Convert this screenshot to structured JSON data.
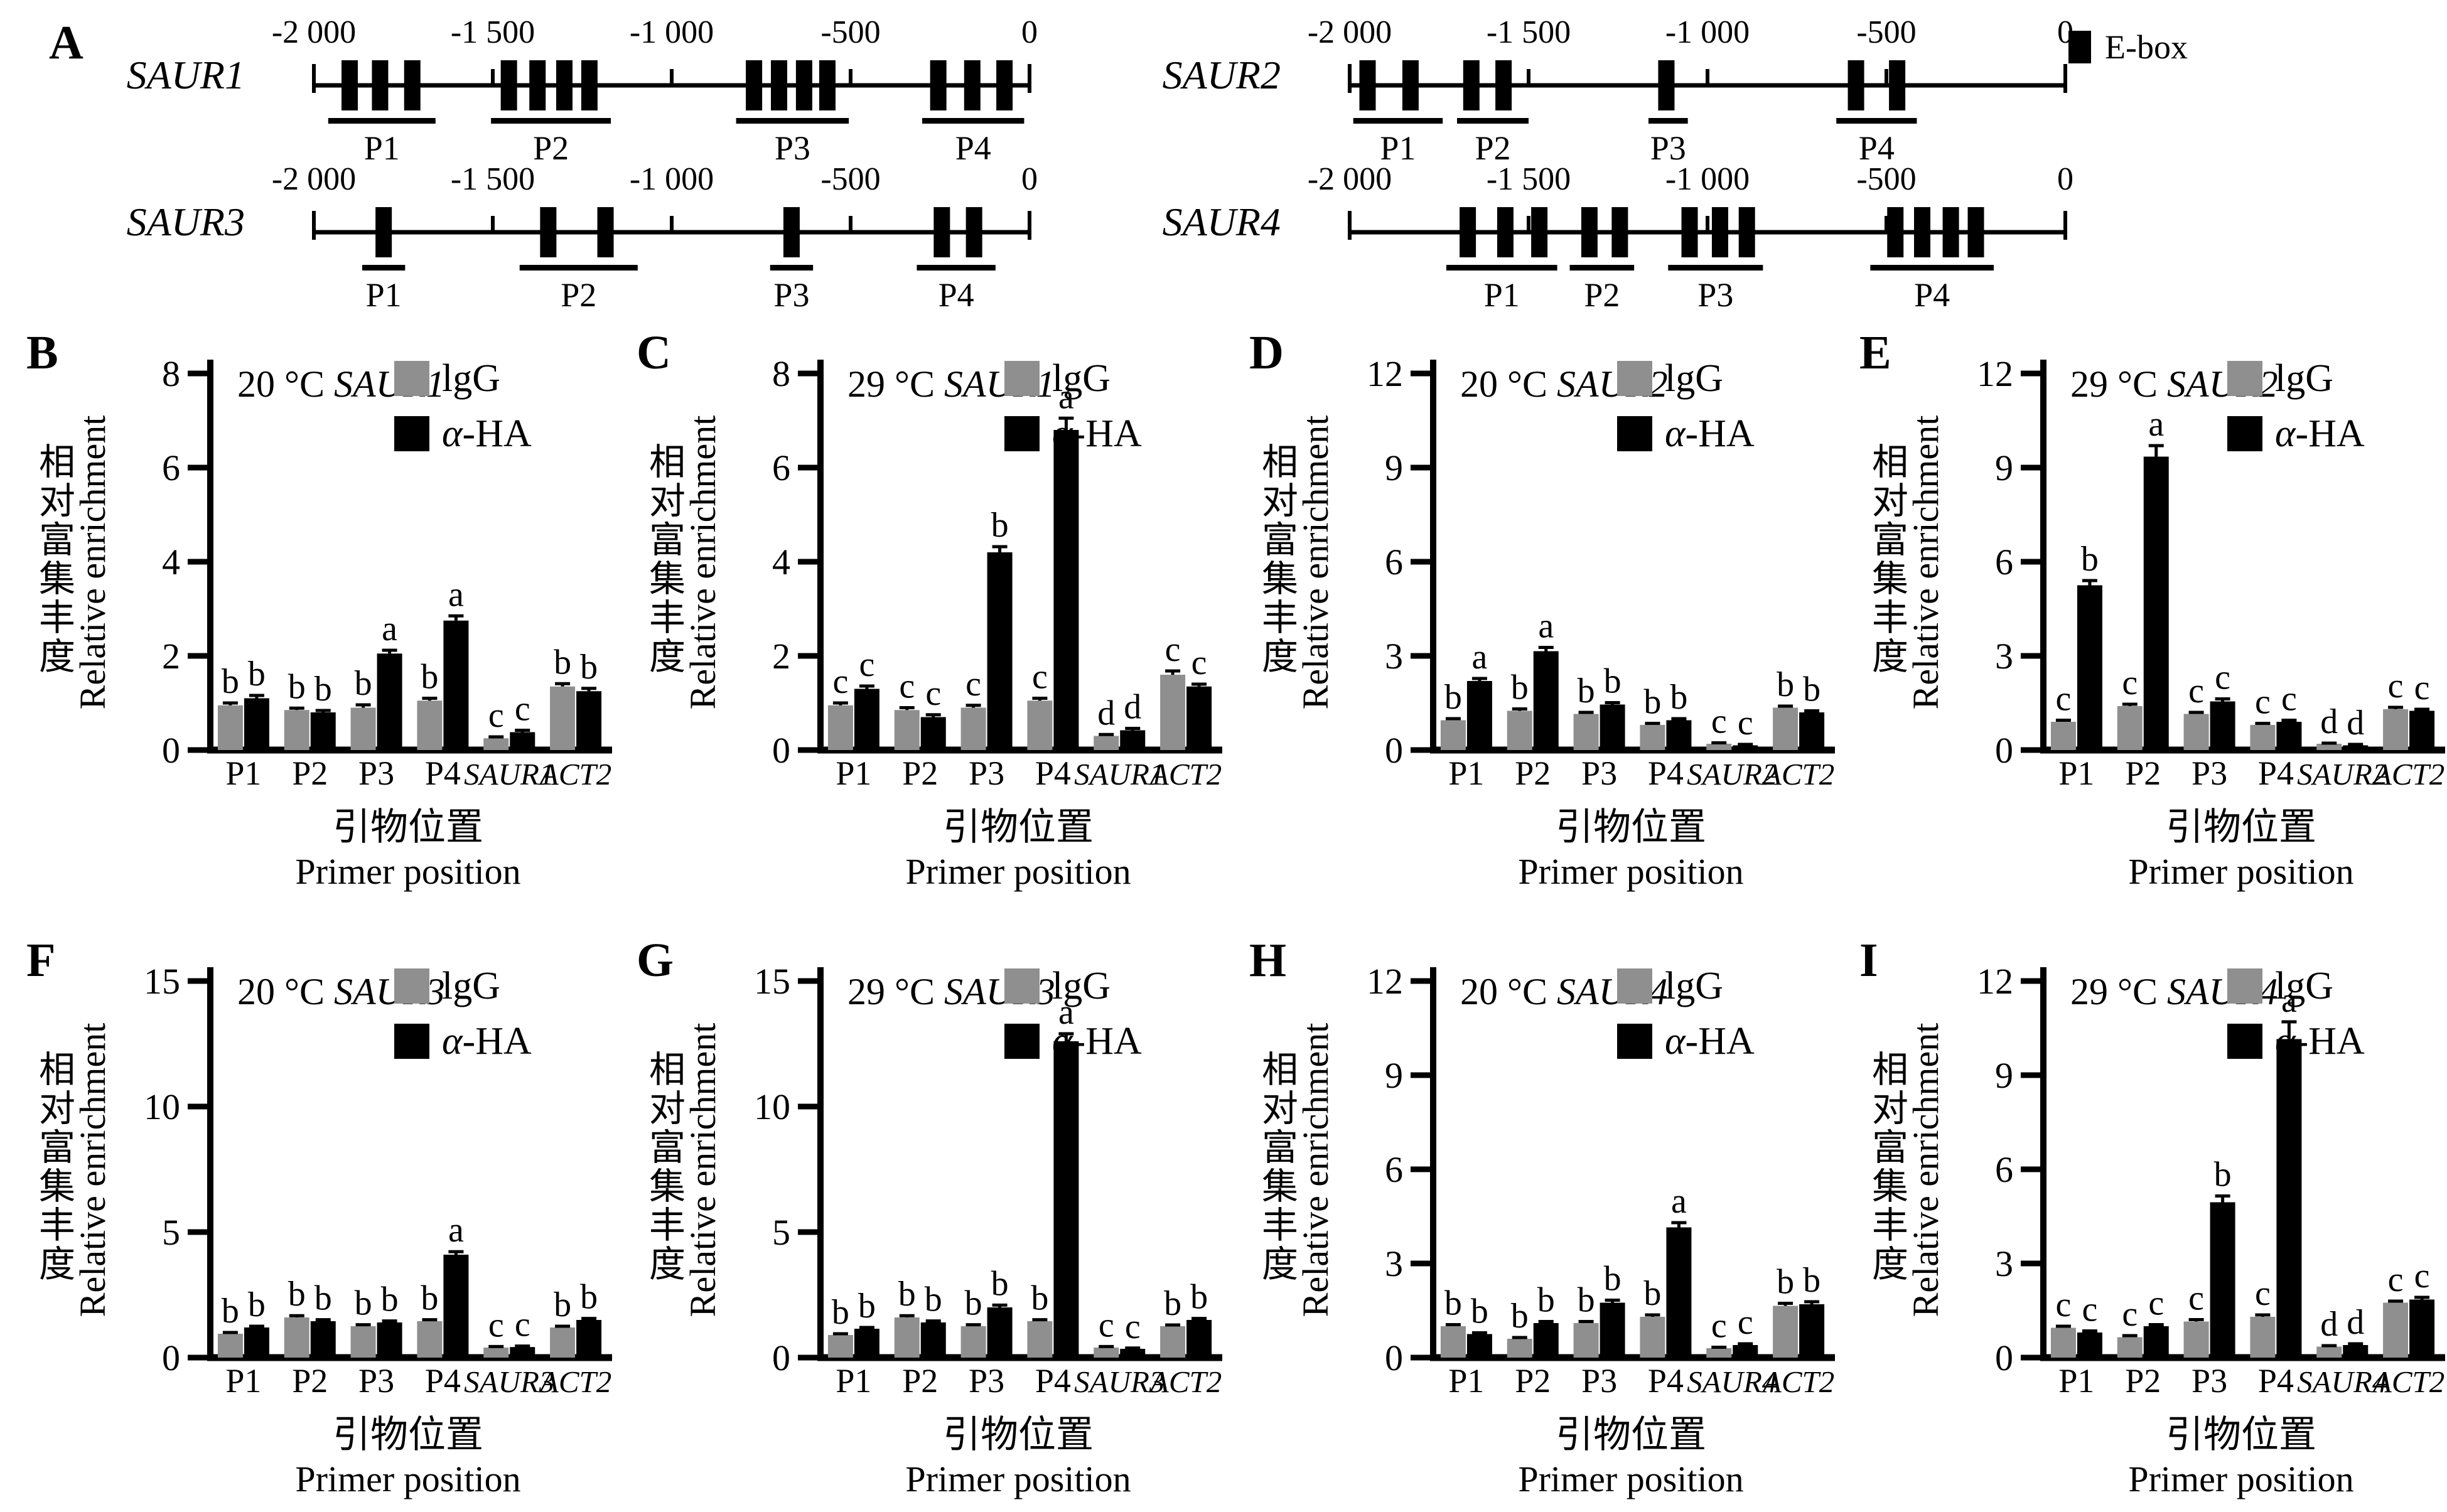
{
  "shared": {
    "ylabel_cn": "相对富集丰度",
    "ylabel_en": "Relative enrichment",
    "xlabel_cn": "引物位置",
    "xlabel_en": "Primer position",
    "legend": {
      "igg": "lgG",
      "ha_alpha": "α",
      "ha_rest": "-HA"
    },
    "colors": {
      "igg": "#8f8f8f",
      "ha": "#000000"
    }
  },
  "panel_a": {
    "label": "A",
    "legend_label": "E-box",
    "axis": {
      "min": -2000,
      "max": 0,
      "ticks": [
        {
          "label": "-2 000",
          "value": -2000
        },
        {
          "label": "-1 500",
          "value": -1500
        },
        {
          "label": "-1 000",
          "value": -1000
        },
        {
          "label": "-500",
          "value": -500
        },
        {
          "label": "0",
          "value": 0
        }
      ]
    },
    "genes": [
      {
        "name": "SAUR1",
        "eboxes": [
          -1900,
          -1815,
          -1725,
          -1455,
          -1375,
          -1300,
          -1230,
          -770,
          -700,
          -630,
          -565,
          -255,
          -160,
          -70
        ],
        "primers": [
          {
            "label": "P1",
            "from": -1960,
            "to": -1660
          },
          {
            "label": "P2",
            "from": -1505,
            "to": -1170
          },
          {
            "label": "P3",
            "from": -820,
            "to": -505
          },
          {
            "label": "P4",
            "from": -300,
            "to": -15
          }
        ]
      },
      {
        "name": "SAUR2",
        "eboxes": [
          -1950,
          -1830,
          -1660,
          -1570,
          -1115,
          -585,
          -470
        ],
        "primers": [
          {
            "label": "P1",
            "from": -1990,
            "to": -1740
          },
          {
            "label": "P2",
            "from": -1700,
            "to": -1500
          },
          {
            "label": "P3",
            "from": -1165,
            "to": -1055
          },
          {
            "label": "P4",
            "from": -640,
            "to": -415
          }
        ]
      },
      {
        "name": "SAUR3",
        "eboxes": [
          -1805,
          -1345,
          -1185,
          -665,
          -245,
          -155
        ],
        "primers": [
          {
            "label": "P1",
            "from": -1865,
            "to": -1745
          },
          {
            "label": "P2",
            "from": -1425,
            "to": -1095
          },
          {
            "label": "P3",
            "from": -725,
            "to": -605
          },
          {
            "label": "P4",
            "from": -315,
            "to": -95
          }
        ]
      },
      {
        "name": "SAUR4",
        "eboxes": [
          -1670,
          -1565,
          -1470,
          -1330,
          -1245,
          -1050,
          -965,
          -890,
          -475,
          -400,
          -320,
          -250
        ],
        "primers": [
          {
            "label": "P1",
            "from": -1730,
            "to": -1420
          },
          {
            "label": "P2",
            "from": -1385,
            "to": -1205
          },
          {
            "label": "P3",
            "from": -1110,
            "to": -845
          },
          {
            "label": "P4",
            "from": -545,
            "to": -200
          }
        ]
      }
    ]
  },
  "chart_data": [
    {
      "type": "bar",
      "panel": "B",
      "title_prefix": "20 °C",
      "title_gene": "SAUR1",
      "ylim": [
        0,
        8
      ],
      "yticks": [
        0,
        2,
        4,
        6,
        8
      ],
      "categories": [
        {
          "label": "P1",
          "gene": false
        },
        {
          "label": "P2",
          "gene": false
        },
        {
          "label": "P3",
          "gene": false
        },
        {
          "label": "P4",
          "gene": false
        },
        {
          "label": "SAUR1",
          "gene": true
        },
        {
          "label": "ACT2",
          "gene": true
        }
      ],
      "series": [
        {
          "name": "lgG",
          "values": [
            0.95,
            0.85,
            0.9,
            1.05,
            0.25,
            1.35
          ],
          "err": [
            0.05,
            0.04,
            0.06,
            0.05,
            0.03,
            0.06
          ],
          "letters": [
            "b",
            "b",
            "b",
            "b",
            "c",
            "b"
          ]
        },
        {
          "name": "α-HA",
          "values": [
            1.1,
            0.8,
            2.05,
            2.75,
            0.38,
            1.25
          ],
          "err": [
            0.06,
            0.04,
            0.07,
            0.1,
            0.04,
            0.06
          ],
          "letters": [
            "b",
            "b",
            "a",
            "a",
            "c",
            "b"
          ]
        }
      ]
    },
    {
      "type": "bar",
      "panel": "C",
      "title_prefix": "29 °C",
      "title_gene": "SAUR1",
      "ylim": [
        0,
        8
      ],
      "yticks": [
        0,
        2,
        4,
        6,
        8
      ],
      "categories": [
        {
          "label": "P1",
          "gene": false
        },
        {
          "label": "P2",
          "gene": false
        },
        {
          "label": "P3",
          "gene": false
        },
        {
          "label": "P4",
          "gene": false
        },
        {
          "label": "SAUR1",
          "gene": true
        },
        {
          "label": "ACT2",
          "gene": true
        }
      ],
      "series": [
        {
          "name": "lgG",
          "values": [
            0.95,
            0.85,
            0.9,
            1.05,
            0.3,
            1.6
          ],
          "err": [
            0.05,
            0.05,
            0.05,
            0.05,
            0.03,
            0.08
          ],
          "letters": [
            "c",
            "c",
            "c",
            "c",
            "d",
            "c"
          ]
        },
        {
          "name": "α-HA",
          "values": [
            1.3,
            0.7,
            4.2,
            6.8,
            0.42,
            1.35
          ],
          "err": [
            0.06,
            0.05,
            0.12,
            0.25,
            0.04,
            0.05
          ],
          "letters": [
            "c",
            "c",
            "b",
            "a",
            "d",
            "c"
          ]
        }
      ]
    },
    {
      "type": "bar",
      "panel": "D",
      "title_prefix": "20 °C",
      "title_gene": "SAUR2",
      "ylim": [
        0,
        12
      ],
      "yticks": [
        0,
        3,
        6,
        9,
        12
      ],
      "categories": [
        {
          "label": "P1",
          "gene": false
        },
        {
          "label": "P2",
          "gene": false
        },
        {
          "label": "P3",
          "gene": false
        },
        {
          "label": "P4",
          "gene": false
        },
        {
          "label": "SAUR2",
          "gene": true
        },
        {
          "label": "ACT2",
          "gene": true
        }
      ],
      "series": [
        {
          "name": "lgG",
          "values": [
            0.95,
            1.25,
            1.15,
            0.8,
            0.2,
            1.35
          ],
          "err": [
            0.05,
            0.06,
            0.05,
            0.05,
            0.03,
            0.05
          ],
          "letters": [
            "b",
            "b",
            "b",
            "b",
            "c",
            "b"
          ]
        },
        {
          "name": "α-HA",
          "values": [
            2.2,
            3.15,
            1.45,
            0.95,
            0.15,
            1.2
          ],
          "err": [
            0.08,
            0.12,
            0.06,
            0.05,
            0.03,
            0.05
          ],
          "letters": [
            "a",
            "a",
            "b",
            "b",
            "c",
            "b"
          ]
        }
      ]
    },
    {
      "type": "bar",
      "panel": "E",
      "title_prefix": "29 °C",
      "title_gene": "SAUR2",
      "ylim": [
        0,
        12
      ],
      "yticks": [
        0,
        3,
        6,
        9,
        12
      ],
      "categories": [
        {
          "label": "P1",
          "gene": false
        },
        {
          "label": "P2",
          "gene": false
        },
        {
          "label": "P3",
          "gene": false
        },
        {
          "label": "P4",
          "gene": false
        },
        {
          "label": "SAUR2",
          "gene": true
        },
        {
          "label": "ACT2",
          "gene": true
        }
      ],
      "series": [
        {
          "name": "lgG",
          "values": [
            0.9,
            1.4,
            1.15,
            0.8,
            0.2,
            1.3
          ],
          "err": [
            0.05,
            0.06,
            0.05,
            0.05,
            0.02,
            0.06
          ],
          "letters": [
            "c",
            "c",
            "c",
            "c",
            "d",
            "c"
          ]
        },
        {
          "name": "α-HA",
          "values": [
            5.25,
            9.35,
            1.55,
            0.9,
            0.15,
            1.25
          ],
          "err": [
            0.15,
            0.35,
            0.08,
            0.05,
            0.03,
            0.05
          ],
          "letters": [
            "b",
            "a",
            "c",
            "c",
            "d",
            "c"
          ]
        }
      ]
    },
    {
      "type": "bar",
      "panel": "F",
      "title_prefix": "20 °C",
      "title_gene": "SAUR3",
      "ylim": [
        0,
        15
      ],
      "yticks": [
        0,
        5,
        10,
        15
      ],
      "categories": [
        {
          "label": "P1",
          "gene": false
        },
        {
          "label": "P2",
          "gene": false
        },
        {
          "label": "P3",
          "gene": false
        },
        {
          "label": "P4",
          "gene": false
        },
        {
          "label": "SAUR3",
          "gene": true
        },
        {
          "label": "ACT2",
          "gene": true
        }
      ],
      "series": [
        {
          "name": "lgG",
          "values": [
            0.95,
            1.6,
            1.25,
            1.45,
            0.4,
            1.2
          ],
          "err": [
            0.05,
            0.07,
            0.06,
            0.06,
            0.04,
            0.05
          ],
          "letters": [
            "b",
            "b",
            "b",
            "b",
            "c",
            "b"
          ]
        },
        {
          "name": "α-HA",
          "values": [
            1.2,
            1.45,
            1.4,
            4.1,
            0.42,
            1.5
          ],
          "err": [
            0.05,
            0.06,
            0.06,
            0.12,
            0.04,
            0.06
          ],
          "letters": [
            "b",
            "b",
            "b",
            "a",
            "c",
            "b"
          ]
        }
      ]
    },
    {
      "type": "bar",
      "panel": "G",
      "title_prefix": "29 °C",
      "title_gene": "SAUR3",
      "ylim": [
        0,
        15
      ],
      "yticks": [
        0,
        5,
        10,
        15
      ],
      "categories": [
        {
          "label": "P1",
          "gene": false
        },
        {
          "label": "P2",
          "gene": false
        },
        {
          "label": "P3",
          "gene": false
        },
        {
          "label": "P4",
          "gene": false
        },
        {
          "label": "SAUR3",
          "gene": true
        },
        {
          "label": "ACT2",
          "gene": true
        }
      ],
      "series": [
        {
          "name": "lgG",
          "values": [
            0.9,
            1.6,
            1.25,
            1.45,
            0.4,
            1.25
          ],
          "err": [
            0.05,
            0.07,
            0.06,
            0.06,
            0.04,
            0.05
          ],
          "letters": [
            "b",
            "b",
            "b",
            "b",
            "c",
            "b"
          ]
        },
        {
          "name": "α-HA",
          "values": [
            1.15,
            1.4,
            2.0,
            12.6,
            0.35,
            1.5
          ],
          "err": [
            0.05,
            0.06,
            0.09,
            0.3,
            0.03,
            0.06
          ],
          "letters": [
            "b",
            "b",
            "b",
            "a",
            "c",
            "b"
          ]
        }
      ]
    },
    {
      "type": "bar",
      "panel": "H",
      "title_prefix": "20 °C",
      "title_gene": "SAUR4",
      "ylim": [
        0,
        12
      ],
      "yticks": [
        0,
        3,
        6,
        9,
        12
      ],
      "categories": [
        {
          "label": "P1",
          "gene": false
        },
        {
          "label": "P2",
          "gene": false
        },
        {
          "label": "P3",
          "gene": false
        },
        {
          "label": "P4",
          "gene": false
        },
        {
          "label": "SAUR4",
          "gene": true
        },
        {
          "label": "ACT2",
          "gene": true
        }
      ],
      "series": [
        {
          "name": "lgG",
          "values": [
            1.0,
            0.6,
            1.1,
            1.3,
            0.3,
            1.65
          ],
          "err": [
            0.05,
            0.04,
            0.05,
            0.06,
            0.03,
            0.08
          ],
          "letters": [
            "b",
            "b",
            "b",
            "b",
            "c",
            "b"
          ]
        },
        {
          "name": "α-HA",
          "values": [
            0.75,
            1.1,
            1.75,
            4.15,
            0.4,
            1.7
          ],
          "err": [
            0.04,
            0.05,
            0.08,
            0.15,
            0.04,
            0.08
          ],
          "letters": [
            "b",
            "b",
            "b",
            "a",
            "c",
            "b"
          ]
        }
      ]
    },
    {
      "type": "bar",
      "panel": "I",
      "title_prefix": "29 °C",
      "title_gene": "SAUR4",
      "ylim": [
        0,
        12
      ],
      "yticks": [
        0,
        3,
        6,
        9,
        12
      ],
      "categories": [
        {
          "label": "P1",
          "gene": false
        },
        {
          "label": "P2",
          "gene": false
        },
        {
          "label": "P3",
          "gene": false
        },
        {
          "label": "P4",
          "gene": false
        },
        {
          "label": "SAUR4",
          "gene": true
        },
        {
          "label": "ACT2",
          "gene": true
        }
      ],
      "series": [
        {
          "name": "lgG",
          "values": [
            0.95,
            0.65,
            1.15,
            1.3,
            0.35,
            1.75
          ],
          "err": [
            0.05,
            0.05,
            0.06,
            0.06,
            0.03,
            0.05
          ],
          "letters": [
            "c",
            "c",
            "c",
            "c",
            "d",
            "c"
          ]
        },
        {
          "name": "α-HA",
          "values": [
            0.8,
            1.0,
            4.95,
            10.15,
            0.4,
            1.85
          ],
          "err": [
            0.05,
            0.05,
            0.2,
            0.55,
            0.04,
            0.07
          ],
          "letters": [
            "c",
            "c",
            "b",
            "a",
            "d",
            "c"
          ]
        }
      ]
    }
  ]
}
